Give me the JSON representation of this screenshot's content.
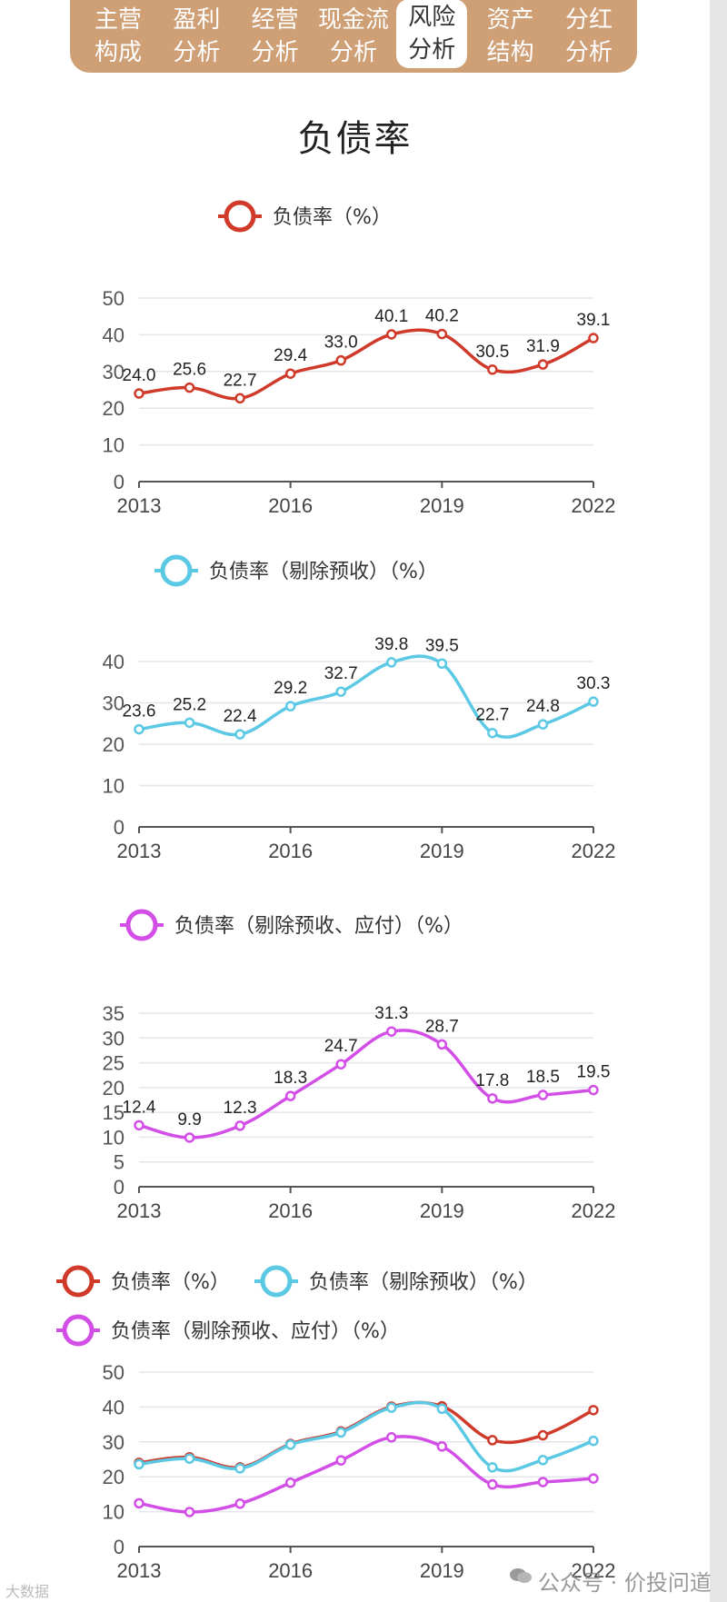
{
  "tabs": [
    {
      "line1": "主营",
      "line2": "构成",
      "active": false
    },
    {
      "line1": "盈利",
      "line2": "分析",
      "active": false
    },
    {
      "line1": "经营",
      "line2": "分析",
      "active": false
    },
    {
      "line1": "现金流",
      "line2": "分析",
      "active": false
    },
    {
      "line1": "风险",
      "line2": "分析",
      "active": true
    },
    {
      "line1": "资产",
      "line2": "结构",
      "active": false
    },
    {
      "line1": "分红",
      "line2": "分析",
      "active": false
    }
  ],
  "page_title": "负债率",
  "colors": {
    "tab_bg": "#cf9f76",
    "red": "#d03a2b",
    "cyan": "#5bc8e4",
    "magenta": "#d24ee6",
    "grid": "#e3e6ec",
    "axis": "#555555"
  },
  "watermark_left": "大数据",
  "watermark_right": "公众号 · 价投问道",
  "chart_data": [
    {
      "type": "line",
      "legend": [
        "负债率（%）"
      ],
      "x": [
        "2013",
        "2014",
        "2015",
        "2016",
        "2017",
        "2018",
        "2019",
        "2020",
        "2021",
        "2022"
      ],
      "xticks": [
        "2013",
        "2016",
        "2019",
        "2022"
      ],
      "ylim": [
        0,
        50
      ],
      "yticks": [
        0,
        10,
        20,
        30,
        40,
        50
      ],
      "series": [
        {
          "name": "负债率（%）",
          "color": "#d03a2b",
          "labels": true,
          "values": [
            24.0,
            25.6,
            22.7,
            29.4,
            33.0,
            40.1,
            40.2,
            30.5,
            31.9,
            39.1
          ]
        }
      ]
    },
    {
      "type": "line",
      "legend": [
        "负债率（剔除预收）（%）"
      ],
      "x": [
        "2013",
        "2014",
        "2015",
        "2016",
        "2017",
        "2018",
        "2019",
        "2020",
        "2021",
        "2022"
      ],
      "xticks": [
        "2013",
        "2016",
        "2019",
        "2022"
      ],
      "ylim": [
        0,
        40
      ],
      "yticks": [
        0,
        10,
        20,
        30,
        40
      ],
      "series": [
        {
          "name": "负债率（剔除预收）（%）",
          "color": "#5bc8e4",
          "labels": true,
          "values": [
            23.6,
            25.2,
            22.4,
            29.2,
            32.7,
            39.8,
            39.5,
            22.7,
            24.8,
            30.3
          ]
        }
      ]
    },
    {
      "type": "line",
      "legend": [
        "负债率（剔除预收、应付）（%）"
      ],
      "x": [
        "2013",
        "2014",
        "2015",
        "2016",
        "2017",
        "2018",
        "2019",
        "2020",
        "2021",
        "2022"
      ],
      "xticks": [
        "2013",
        "2016",
        "2019",
        "2022"
      ],
      "ylim": [
        0,
        35
      ],
      "yticks": [
        0,
        5,
        10,
        15,
        20,
        25,
        30,
        35
      ],
      "series": [
        {
          "name": "负债率（剔除预收、应付）（%）",
          "color": "#d24ee6",
          "labels": true,
          "values": [
            12.4,
            9.9,
            12.3,
            18.3,
            24.7,
            31.3,
            28.7,
            17.8,
            18.5,
            19.5
          ]
        }
      ]
    },
    {
      "type": "line",
      "legend": [
        "负债率（%）",
        "负债率（剔除预收）（%）",
        "负债率（剔除预收、应付）（%）"
      ],
      "x": [
        "2013",
        "2014",
        "2015",
        "2016",
        "2017",
        "2018",
        "2019",
        "2020",
        "2021",
        "2022"
      ],
      "xticks": [
        "2013",
        "2016",
        "2019",
        "2022"
      ],
      "ylim": [
        0,
        50
      ],
      "yticks": [
        0,
        10,
        20,
        30,
        40,
        50
      ],
      "series": [
        {
          "name": "负债率（%）",
          "color": "#d03a2b",
          "labels": false,
          "values": [
            24.0,
            25.6,
            22.7,
            29.4,
            33.0,
            40.1,
            40.2,
            30.5,
            31.9,
            39.1
          ]
        },
        {
          "name": "负债率（剔除预收）（%）",
          "color": "#5bc8e4",
          "labels": false,
          "values": [
            23.6,
            25.2,
            22.4,
            29.2,
            32.7,
            39.8,
            39.5,
            22.7,
            24.8,
            30.3
          ]
        },
        {
          "name": "负债率（剔除预收、应付）（%）",
          "color": "#d24ee6",
          "labels": false,
          "values": [
            12.4,
            9.9,
            12.3,
            18.3,
            24.7,
            31.3,
            28.7,
            17.8,
            18.5,
            19.5
          ]
        }
      ]
    }
  ]
}
